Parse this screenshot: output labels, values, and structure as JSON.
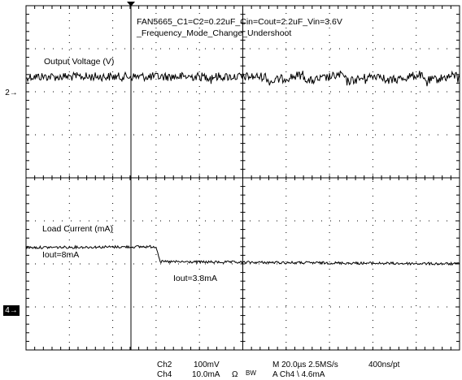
{
  "title_lines": [
    "FAN5665_C1=C2=0.22uF_Cin=Cout=2.2uF_Vin=3.6V",
    "_Frequency_Mode_Change_Undershoot"
  ],
  "channel_labels": {
    "ch1": "Output Voltage (V)",
    "ch4": "Load Current (mA)"
  },
  "annotations": {
    "iout_before": "Iout=8mA",
    "iout_after": "Iout=3.8mA"
  },
  "ground_markers": {
    "ch1": "2",
    "ch4": "4"
  },
  "status_bar": {
    "ch2_label": "Ch2",
    "ch2_scale": "100mV",
    "ch4_label": "Ch4",
    "ch4_scale": "10.0mA",
    "ch4_coupling": "Ω",
    "bw_label": "BW",
    "timebase": "M 20.0µs 2.5MS/s",
    "record": "400ns/pt",
    "trigger": "A  Ch4  \\  4.6mA"
  },
  "chart_data": {
    "type": "line",
    "grid": true,
    "x_divisions": 10,
    "y_divisions": 8,
    "timebase_per_div": "20.0µs",
    "trigger_position_div": 3.0,
    "series": [
      {
        "name": "Output Voltage (V)",
        "level_div": 1.65,
        "noise_div": 0.1,
        "description_points": [
          {
            "x_div": 0.0,
            "y_div": 1.65
          },
          {
            "x_div": 3.0,
            "y_div": 1.65
          },
          {
            "x_div": 5.5,
            "y_div": 1.65
          },
          {
            "x_div": 10.0,
            "y_div": 1.65
          }
        ]
      },
      {
        "name": "Load Current (mA)",
        "values_div": [
          {
            "x_div": 0.0,
            "y_div": 5.62
          },
          {
            "x_div": 3.0,
            "y_div": 5.6
          },
          {
            "x_div": 3.1,
            "y_div": 5.95
          },
          {
            "x_div": 10.0,
            "y_div": 6.0
          }
        ]
      }
    ]
  }
}
